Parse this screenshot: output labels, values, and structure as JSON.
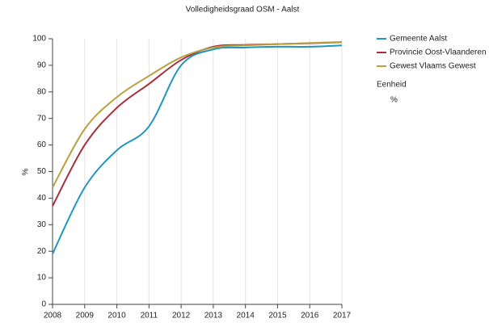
{
  "chart_data": {
    "type": "line",
    "title": "Volledigheidsgraad OSM - Aalst",
    "ylabel": "%",
    "x": [
      2008,
      2009,
      2010,
      2011,
      2012,
      2013,
      2014,
      2015,
      2016,
      2017
    ],
    "series": [
      {
        "name": "Gemeente Aalst",
        "color": "#1f97bd",
        "values": [
          19,
          44,
          58,
          67,
          90,
          96,
          96.7,
          97,
          97,
          97.5
        ]
      },
      {
        "name": "Provincie Oost-Vlaanderen",
        "color": "#a5303b",
        "values": [
          37,
          60,
          74,
          83,
          92,
          97,
          97.7,
          98,
          98.3,
          98.7
        ]
      },
      {
        "name": "Gewest Vlaams Gewest",
        "color": "#b9a040",
        "values": [
          44,
          66,
          78,
          86,
          93,
          96.7,
          97.5,
          98,
          98.4,
          98.8
        ]
      }
    ],
    "legend_title": "Eenheid",
    "legend_unit": "%",
    "xlim": [
      2008,
      2017
    ],
    "xticks": [
      2008,
      2009,
      2010,
      2011,
      2012,
      2013,
      2014,
      2015,
      2016,
      2017
    ],
    "ylim": [
      0,
      100
    ],
    "yticks": [
      0,
      10,
      20,
      30,
      40,
      50,
      60,
      70,
      80,
      90,
      100
    ],
    "grid": true,
    "legend": "right"
  }
}
